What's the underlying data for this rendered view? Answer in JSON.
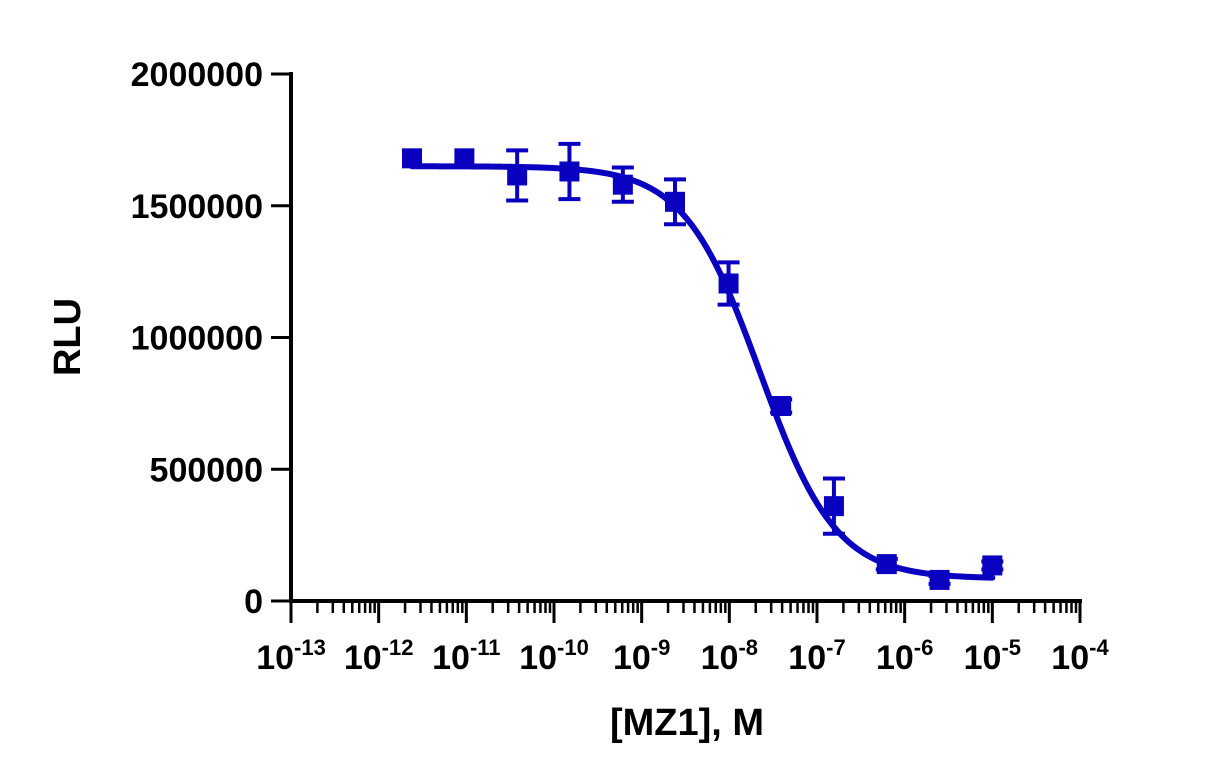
{
  "chart_data": {
    "type": "scatter",
    "xscale": "log",
    "xlabel": "[MZ1], M",
    "ylabel": "RLU",
    "xlim": [
      1e-13,
      0.0001
    ],
    "ylim": [
      0,
      2000000
    ],
    "x_ticks": [
      {
        "value": 1e-13,
        "base": "10",
        "exp": "-13"
      },
      {
        "value": 1e-12,
        "base": "10",
        "exp": "-12"
      },
      {
        "value": 1e-11,
        "base": "10",
        "exp": "-11"
      },
      {
        "value": 1e-10,
        "base": "10",
        "exp": "-10"
      },
      {
        "value": 1e-09,
        "base": "10",
        "exp": "-9"
      },
      {
        "value": 1e-08,
        "base": "10",
        "exp": "-8"
      },
      {
        "value": 1e-07,
        "base": "10",
        "exp": "-7"
      },
      {
        "value": 1e-06,
        "base": "10",
        "exp": "-6"
      },
      {
        "value": 1e-05,
        "base": "10",
        "exp": "-5"
      },
      {
        "value": 0.0001,
        "base": "10",
        "exp": "-4"
      }
    ],
    "y_ticks": [
      {
        "value": 0,
        "label": "0"
      },
      {
        "value": 500000,
        "label": "500000"
      },
      {
        "value": 1000000,
        "label": "1000000"
      },
      {
        "value": 1500000,
        "label": "1500000"
      },
      {
        "value": 2000000,
        "label": "2000000"
      }
    ],
    "series": [
      {
        "color": "#0a00c0",
        "marker": "square",
        "points": [
          {
            "x": 2.4e-12,
            "y": 1680000,
            "err": 0
          },
          {
            "x": 9.5e-12,
            "y": 1680000,
            "err": 0
          },
          {
            "x": 3.8e-11,
            "y": 1615000,
            "err": 95000
          },
          {
            "x": 1.5e-10,
            "y": 1630000,
            "err": 105000
          },
          {
            "x": 6.1e-10,
            "y": 1580000,
            "err": 65000
          },
          {
            "x": 2.4e-09,
            "y": 1515000,
            "err": 85000
          },
          {
            "x": 9.8e-09,
            "y": 1205000,
            "err": 80000
          },
          {
            "x": 3.9e-08,
            "y": 740000,
            "err": 25000
          },
          {
            "x": 1.56e-07,
            "y": 360000,
            "err": 105000
          },
          {
            "x": 6.25e-07,
            "y": 140000,
            "err": 20000
          },
          {
            "x": 2.5e-06,
            "y": 80000,
            "err": 15000
          },
          {
            "x": 1e-05,
            "y": 135000,
            "err": 15000
          }
        ],
        "fit": {
          "model": "4PL",
          "top": 1650000,
          "bottom": 85000,
          "logEC50": -7.65,
          "hill": 1.0
        }
      }
    ]
  }
}
